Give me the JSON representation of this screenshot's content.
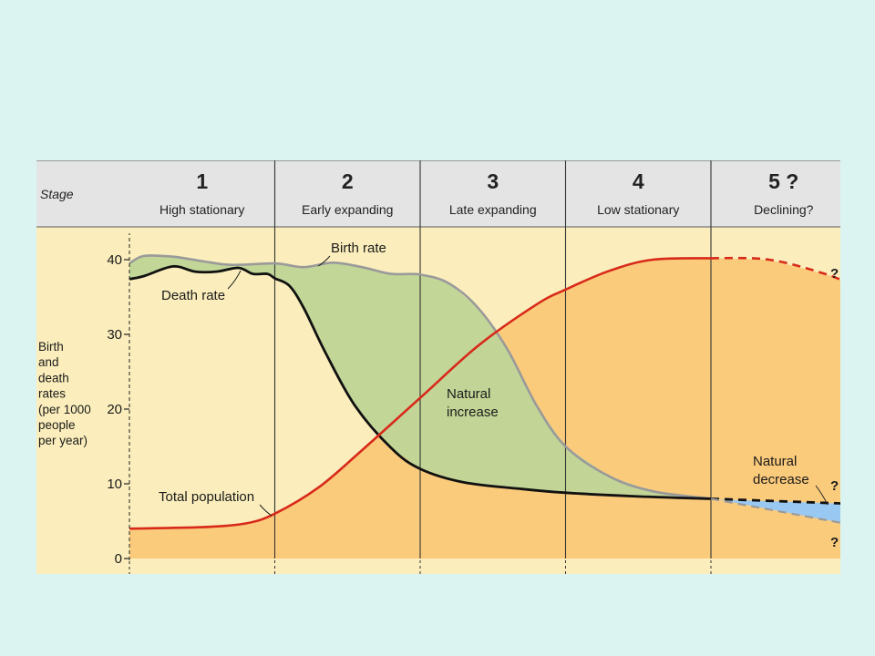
{
  "chart_data": {
    "type": "line",
    "header_label": "Stage",
    "stages": [
      {
        "number": "1",
        "name": "High stationary"
      },
      {
        "number": "2",
        "name": "Early expanding"
      },
      {
        "number": "3",
        "name": "Late expanding"
      },
      {
        "number": "4",
        "name": "Low stationary"
      },
      {
        "number": "5 ?",
        "name": "Declining?"
      }
    ],
    "ylabel_lines": [
      "Birth",
      "and",
      "death",
      "rates",
      "(per 1000",
      "people",
      "per year)"
    ],
    "ylim": [
      0,
      40
    ],
    "yticks": [
      "0",
      "10",
      "20",
      "30",
      "40"
    ],
    "x_stage_boundaries": [
      0,
      1,
      2,
      3,
      4,
      5
    ],
    "series": [
      {
        "name": "Birth rate",
        "color": "#9a9a9a",
        "x": [
          0,
          0.1,
          0.3,
          0.5,
          0.7,
          1.0,
          1.2,
          1.4,
          1.6,
          1.8,
          2.0,
          2.2,
          2.4,
          2.6,
          2.8,
          3.0,
          3.3,
          3.6,
          4.0
        ],
        "y": [
          39.5,
          40.5,
          40.4,
          39.8,
          39.3,
          39.5,
          39.0,
          39.6,
          39.0,
          38.1,
          38.0,
          36.8,
          33.5,
          28.0,
          20.5,
          15.0,
          11.0,
          9.0,
          8.0
        ]
      },
      {
        "name": "Death rate",
        "color": "#111111",
        "x": [
          0,
          0.1,
          0.3,
          0.45,
          0.6,
          0.75,
          0.85,
          0.95,
          1.0,
          1.1,
          1.2,
          1.35,
          1.55,
          1.8,
          2.0,
          2.3,
          2.7,
          3.0,
          3.5,
          4.0
        ],
        "y": [
          37.4,
          37.8,
          39.1,
          38.4,
          38.4,
          38.9,
          38.1,
          38.1,
          37.5,
          36.5,
          33.5,
          27.5,
          20.5,
          14.8,
          12.0,
          10.2,
          9.3,
          8.8,
          8.3,
          8.0
        ]
      },
      {
        "name": "Total population",
        "color": "#d82a1a",
        "x": [
          0,
          0.5,
          0.8,
          1.0,
          1.3,
          1.6,
          2.0,
          2.4,
          2.8,
          3.0,
          3.3,
          3.6,
          4.0,
          4.4,
          4.8,
          5.0
        ],
        "y": [
          4.0,
          4.2,
          4.7,
          6.0,
          9.5,
          14.5,
          21.5,
          28.5,
          34.0,
          36.0,
          38.5,
          40.0,
          40.2,
          40.0,
          38.0,
          36.3
        ]
      }
    ],
    "annotations": [
      "Birth rate",
      "Death rate",
      "Natural increase",
      "Total population",
      "Natural decrease",
      "?"
    ]
  }
}
